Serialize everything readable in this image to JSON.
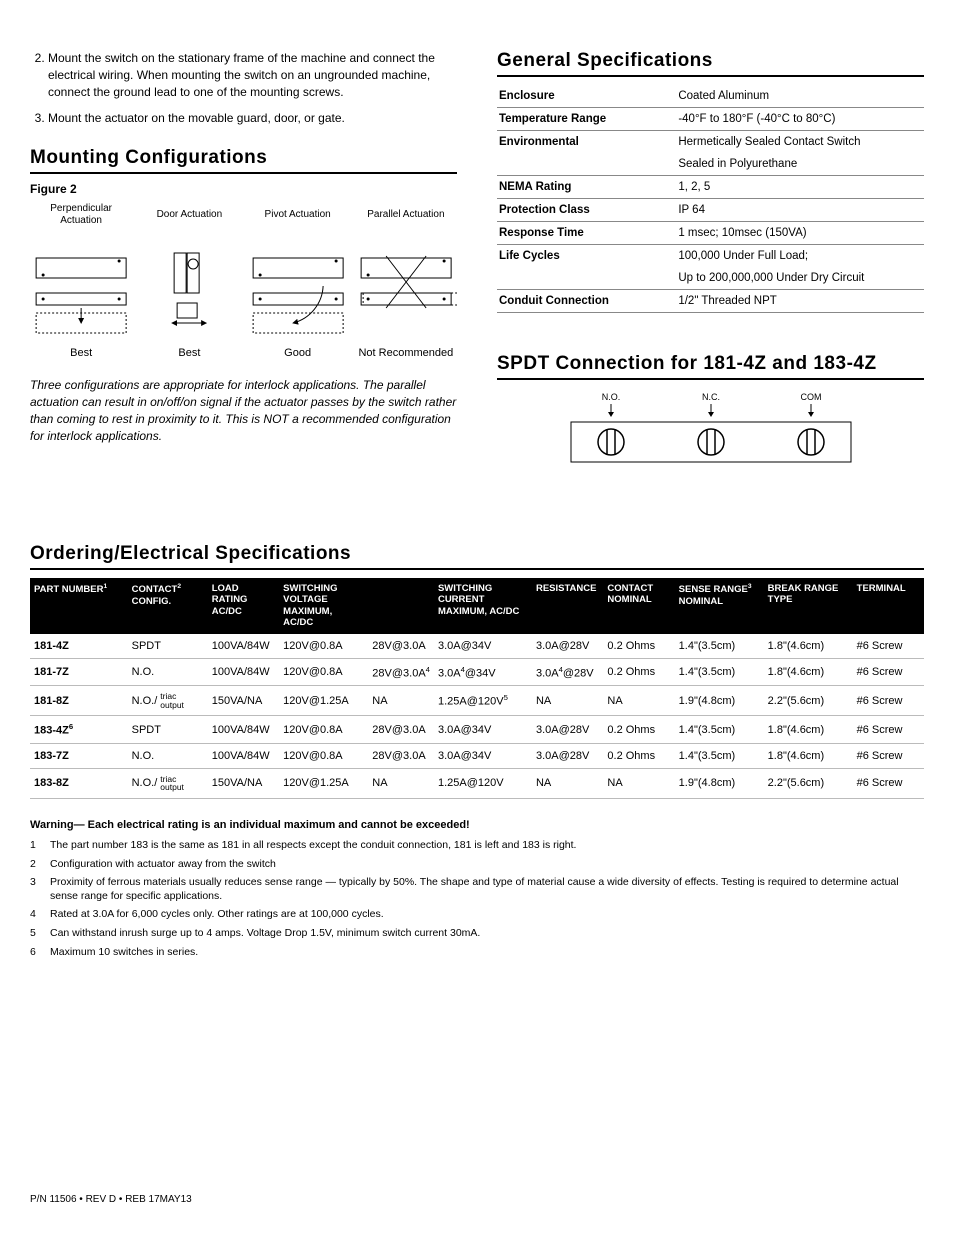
{
  "instructions": [
    "Mount the switch on the stationary frame of the machine and connect the electrical wiring. When mounting the switch on an ungrounded machine, connect the ground lead to one of the mounting screws.",
    "Mount the actuator on the movable guard, door, or gate."
  ],
  "mounting": {
    "title": "Mounting Configurations",
    "figure": "Figure 2",
    "cells": [
      {
        "header": "Perpendicular Actuation",
        "footer": "Best"
      },
      {
        "header": "Door Actuation",
        "footer": "Best"
      },
      {
        "header": "Pivot Actuation",
        "footer": "Good"
      },
      {
        "header": "Parallel Actuation",
        "footer": "Not Recommended"
      }
    ],
    "note": "Three configurations are appropriate for interlock applications. The parallel actuation can result in on/off/on signal if the actuator passes by the switch rather than coming to rest in proximity to it. This is NOT a recommended configuration for interlock applications."
  },
  "general": {
    "title": "General Specifications",
    "rows": [
      [
        "Enclosure",
        "Coated Aluminum"
      ],
      [
        "Temperature Range",
        "-40°F to 180°F (-40°C to 80°C)"
      ],
      [
        "Environmental",
        "Hermetically Sealed Contact Switch"
      ],
      [
        "",
        "Sealed in Polyurethane"
      ],
      [
        "NEMA Rating",
        "1, 2, 5"
      ],
      [
        "Protection Class",
        "IP 64"
      ],
      [
        "Response Time",
        "1 msec; 10msec (150VA)"
      ],
      [
        "Life Cycles",
        "100,000 Under Full Load;"
      ],
      [
        "",
        "Up to 200,000,000 Under Dry Circuit"
      ],
      [
        "Conduit Connection",
        "1/2\" Threaded NPT"
      ]
    ]
  },
  "spdt": {
    "title": "SPDT Connection for 181-4Z and 183-4Z",
    "terminals": [
      "N.O.",
      "N.C.",
      "COM"
    ]
  },
  "ordering": {
    "title": "Ordering/Electrical Specifications",
    "header_row": [
      "PART NUMBER¹",
      "CONTACT²\nCONFIG.",
      "LOAD RATING\nAC/DC",
      "SWITCHING VOLTAGE\nMAXIMUM, AC/DC",
      "",
      "SWITCHING CURRENT\nMAXIMUM, AC/DC",
      "RESISTANCE",
      "CONTACT\nNOMINAL",
      "SENSE RANGE³\nNOMINAL",
      "BREAK RANGE\nTYPE",
      "TERMINAL"
    ],
    "rows": [
      {
        "pn": "181-4Z",
        "cfg": "SPDT",
        "load": "100VA/84W",
        "sv1": "120V@0.8A",
        "sv2": "28V@3.0A",
        "sc1": "3.0A@34V",
        "sc2": "3.0A@28V",
        "res": "0.2 Ohms",
        "sense": "1.4\"(3.5cm)",
        "break": "1.8\"(4.6cm)",
        "term": "#6 Screw"
      },
      {
        "pn": "181-7Z",
        "cfg": "N.O.",
        "load": "100VA/84W",
        "sv1": "120V@0.8A",
        "sv2": "28V@3.0A⁴",
        "sc1": "3.0A⁴@34V",
        "sc2": "3.0A⁴@28V",
        "res": "0.2 Ohms",
        "sense": "1.4\"(3.5cm)",
        "break": "1.8\"(4.6cm)",
        "term": "#6 Screw"
      },
      {
        "pn": "181-8Z",
        "cfg": "N.O./",
        "cfg_stack": " triac output",
        "load": "150VA/NA",
        "sv1": "120V@1.25A",
        "sv2": "NA",
        "sc1": "1.25A@120V⁵",
        "sc2": "NA",
        "res": "NA",
        "sense": "1.9\"(4.8cm)",
        "break": "2.2\"(5.6cm)",
        "term": "#6 Screw"
      },
      {
        "pn": "183-4Z⁶",
        "cfg": "SPDT",
        "load": "100VA/84W",
        "sv1": "120V@0.8A",
        "sv2": "28V@3.0A",
        "sc1": "3.0A@34V",
        "sc2": "3.0A@28V",
        "res": "0.2 Ohms",
        "sense": "1.4\"(3.5cm)",
        "break": "1.8\"(4.6cm)",
        "term": "#6 Screw"
      },
      {
        "pn": "183-7Z",
        "cfg": "N.O.",
        "load": "100VA/84W",
        "sv1": "120V@0.8A",
        "sv2": "28V@3.0A",
        "sc1": "3.0A@34V",
        "sc2": "3.0A@28V",
        "res": "0.2 Ohms",
        "sense": "1.4\"(3.5cm)",
        "break": "1.8\"(4.6cm)",
        "term": "#6 Screw"
      },
      {
        "pn": "183-8Z",
        "cfg": "N.O./",
        "cfg_stack": " triac output",
        "load": "150VA/NA",
        "sv1": "120V@1.25A",
        "sv2": "NA",
        "sc1": "1.25A@120V",
        "sc2": "NA",
        "res": "NA",
        "sense": "1.9\"(4.8cm)",
        "break": "2.2\"(5.6cm)",
        "term": "#6 Screw"
      }
    ]
  },
  "warning": "Warning— Each electrical rating is an individual maximum and cannot be exceeded!",
  "footnotes": [
    "The part number 183 is the same as 181 in all respects except the conduit connection, 181 is left and 183 is right.",
    "Configuration with actuator away from the switch",
    "Proximity of ferrous materials usually reduces sense range — typically by 50%. The shape and type of material cause a wide diversity of effects. Testing is required to determine actual sense range for specific applications.",
    "Rated at 3.0A for 6,000 cycles only. Other ratings are at 100,000 cycles.",
    "Can withstand inrush surge up to 4 amps. Voltage Drop 1.5V, minimum switch current 30mA.",
    "Maximum 10 switches in series."
  ],
  "page_foot": "P/N 11506 • REV D • REB 17MAY13"
}
